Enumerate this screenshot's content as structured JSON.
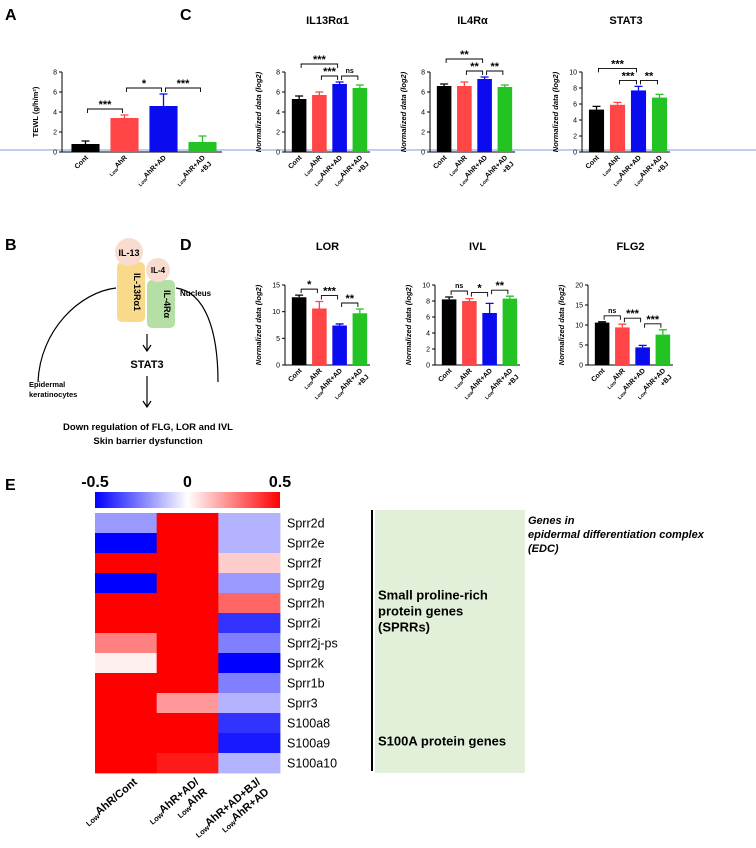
{
  "chart_data": [
    {
      "type": "bar",
      "panel": "A",
      "y_label": "TEWL (g/h/m²)",
      "categories": [
        [
          "Cont"
        ],
        [
          {
            "sub": "Low",
            "text": "AhR"
          }
        ],
        [
          {
            "sub": "Low",
            "text": "AhR+AD"
          }
        ],
        [
          {
            "sub": "Low",
            "text": "AhR+AD"
          },
          "+BJ"
        ]
      ],
      "values": [
        0.8,
        3.4,
        4.6,
        1.0
      ],
      "errors": [
        0.3,
        0.3,
        1.2,
        0.6
      ],
      "colors": [
        "#000000",
        "#ff4545",
        "#0b0bf0",
        "#22c322"
      ],
      "ylim": [
        0,
        8
      ],
      "yticks": [
        0,
        2,
        4,
        6,
        8
      ],
      "significance": [
        {
          "pair": [
            0,
            1
          ],
          "label": "***"
        },
        {
          "pair": [
            1,
            2
          ],
          "label": "*"
        },
        {
          "pair": [
            2,
            3
          ],
          "label": "***"
        }
      ]
    },
    {
      "type": "bar",
      "panel": "C",
      "title": "IL13Rα1",
      "y_label": "Normalized data (log2)",
      "categories": [
        [
          "Cont"
        ],
        [
          {
            "sub": "Low",
            "text": "AhR"
          }
        ],
        [
          {
            "sub": "Low",
            "text": "AhR+AD"
          }
        ],
        [
          {
            "sub": "Low",
            "text": "AhR+AD"
          },
          "+BJ"
        ]
      ],
      "values": [
        5.3,
        5.7,
        6.8,
        6.4
      ],
      "errors": [
        0.3,
        0.3,
        0.2,
        0.3
      ],
      "colors": [
        "#000000",
        "#ff4545",
        "#0b0bf0",
        "#22c322"
      ],
      "ylim": [
        0,
        8
      ],
      "yticks": [
        0,
        2,
        4,
        6,
        8
      ],
      "significance": [
        {
          "pair": [
            0,
            2
          ],
          "label": "***"
        },
        {
          "pair": [
            1,
            2
          ],
          "label": "***"
        },
        {
          "pair": [
            2,
            3
          ],
          "label": "ns"
        }
      ]
    },
    {
      "type": "bar",
      "title": "IL4Rα",
      "y_label": "Normalized data (log2)",
      "categories": [
        [
          "Cont"
        ],
        [
          {
            "sub": "Low",
            "text": "AhR"
          }
        ],
        [
          {
            "sub": "Low",
            "text": "AhR+AD"
          }
        ],
        [
          {
            "sub": "Low",
            "text": "AhR+AD"
          },
          "+BJ"
        ]
      ],
      "values": [
        6.6,
        6.6,
        7.3,
        6.5
      ],
      "errors": [
        0.2,
        0.4,
        0.2,
        0.2
      ],
      "colors": [
        "#000000",
        "#ff4545",
        "#0b0bf0",
        "#22c322"
      ],
      "ylim": [
        0,
        8
      ],
      "yticks": [
        0,
        2,
        4,
        6,
        8
      ],
      "significance": [
        {
          "pair": [
            0,
            2
          ],
          "label": "**"
        },
        {
          "pair": [
            1,
            2
          ],
          "label": "**"
        },
        {
          "pair": [
            2,
            3
          ],
          "label": "**"
        }
      ]
    },
    {
      "type": "bar",
      "title": "STAT3",
      "y_label": "Normalized data (log2)",
      "categories": [
        [
          "Cont"
        ],
        [
          {
            "sub": "Low",
            "text": "AhR"
          }
        ],
        [
          {
            "sub": "Low",
            "text": "AhR+AD"
          }
        ],
        [
          {
            "sub": "Low",
            "text": "AhR+AD"
          },
          "+BJ"
        ]
      ],
      "values": [
        5.3,
        5.9,
        7.7,
        6.8
      ],
      "errors": [
        0.4,
        0.3,
        0.5,
        0.4
      ],
      "colors": [
        "#000000",
        "#ff4545",
        "#0b0bf0",
        "#22c322"
      ],
      "ylim": [
        0,
        10
      ],
      "yticks": [
        0,
        2,
        4,
        6,
        8,
        10
      ],
      "significance": [
        {
          "pair": [
            0,
            2
          ],
          "label": "***"
        },
        {
          "pair": [
            1,
            2
          ],
          "label": "***"
        },
        {
          "pair": [
            2,
            3
          ],
          "label": "**"
        }
      ]
    },
    {
      "type": "bar",
      "panel": "D",
      "title": "LOR",
      "y_label": "Normalized data (log2)",
      "categories": [
        [
          "Cont"
        ],
        [
          {
            "sub": "Low",
            "text": "AhR"
          }
        ],
        [
          {
            "sub": "Low",
            "text": "AhR+AD"
          }
        ],
        [
          {
            "sub": "Low",
            "text": "AhR+AD"
          },
          "+BJ"
        ]
      ],
      "values": [
        12.7,
        10.6,
        7.4,
        9.7
      ],
      "errors": [
        0.4,
        1.3,
        0.3,
        0.8
      ],
      "colors": [
        "#000000",
        "#ff4545",
        "#0b0bf0",
        "#22c322"
      ],
      "ylim": [
        0,
        15
      ],
      "yticks": [
        0,
        5,
        10,
        15
      ],
      "significance": [
        {
          "pair": [
            0,
            1
          ],
          "label": "*"
        },
        {
          "pair": [
            1,
            2
          ],
          "label": "***"
        },
        {
          "pair": [
            2,
            3
          ],
          "label": "**"
        }
      ]
    },
    {
      "type": "bar",
      "title": "IVL",
      "y_label": "Normalized data (log2)",
      "categories": [
        [
          "Cont"
        ],
        [
          {
            "sub": "Low",
            "text": "AhR"
          }
        ],
        [
          {
            "sub": "Low",
            "text": "AhR+AD"
          }
        ],
        [
          {
            "sub": "Low",
            "text": "AhR+AD"
          },
          "+BJ"
        ]
      ],
      "values": [
        8.2,
        8.0,
        6.5,
        8.3
      ],
      "errors": [
        0.3,
        0.3,
        1.2,
        0.3
      ],
      "colors": [
        "#000000",
        "#ff4545",
        "#0b0bf0",
        "#22c322"
      ],
      "ylim": [
        0,
        10
      ],
      "yticks": [
        0,
        2,
        4,
        6,
        8,
        10
      ],
      "significance": [
        {
          "pair": [
            0,
            1
          ],
          "label": "ns"
        },
        {
          "pair": [
            1,
            2
          ],
          "label": "*"
        },
        {
          "pair": [
            2,
            3
          ],
          "label": "**"
        }
      ]
    },
    {
      "type": "bar",
      "title": "FLG2",
      "y_label": "Normalized data (log2)",
      "categories": [
        [
          "Cont"
        ],
        [
          {
            "sub": "Low",
            "text": "AhR"
          }
        ],
        [
          {
            "sub": "Low",
            "text": "AhR+AD"
          }
        ],
        [
          {
            "sub": "Low",
            "text": "AhR+AD"
          },
          "+BJ"
        ]
      ],
      "values": [
        10.6,
        9.4,
        4.4,
        7.6
      ],
      "errors": [
        0.2,
        0.8,
        0.5,
        1.2
      ],
      "colors": [
        "#000000",
        "#ff4545",
        "#0b0bf0",
        "#22c322"
      ],
      "ylim": [
        0,
        20
      ],
      "yticks": [
        0,
        5,
        10,
        15,
        20
      ],
      "significance": [
        {
          "pair": [
            0,
            1
          ],
          "label": "ns"
        },
        {
          "pair": [
            1,
            2
          ],
          "label": "***"
        },
        {
          "pair": [
            2,
            3
          ],
          "label": "***"
        }
      ]
    },
    {
      "type": "heatmap",
      "panel": "E",
      "rows": [
        "Sprr2d",
        "Sprr2e",
        "Sprr2f",
        "Sprr2g",
        "Sprr2h",
        "Sprr2i",
        "Sprr2j-ps",
        "Sprr2k",
        "Sprr1b",
        "Sprr3",
        "S100a8",
        "S100a9",
        "S100a10"
      ],
      "columns": [
        [
          {
            "sub": "Low",
            "text": "AhR/Cont"
          }
        ],
        [
          {
            "sub": "Low",
            "text": "AhR+AD/"
          },
          {
            "sub": "Low",
            "text": "AhR"
          }
        ],
        [
          {
            "sub": "Low",
            "text": "AhR+AD+BJ/"
          },
          {
            "sub": "Low",
            "text": "AhR+AD"
          }
        ]
      ],
      "values": [
        [
          -0.2,
          0.5,
          -0.15
        ],
        [
          -0.5,
          0.5,
          -0.15
        ],
        [
          0.5,
          0.5,
          0.1
        ],
        [
          -0.5,
          0.5,
          -0.2
        ],
        [
          0.5,
          0.5,
          0.3
        ],
        [
          0.5,
          0.5,
          -0.4
        ],
        [
          0.25,
          0.5,
          -0.25
        ],
        [
          0.03,
          0.5,
          -0.5
        ],
        [
          0.5,
          0.5,
          -0.25
        ],
        [
          0.5,
          0.2,
          -0.15
        ],
        [
          0.5,
          0.5,
          -0.4
        ],
        [
          0.5,
          0.5,
          -0.45
        ],
        [
          0.5,
          0.45,
          -0.15
        ]
      ],
      "clim": [
        -0.5,
        0.5
      ],
      "cticks": [
        -0.5,
        0,
        0.5
      ],
      "cmap": [
        "#0000ff",
        "#ffffff",
        "#ff0000"
      ],
      "groups": [
        {
          "lines": [
            "Small proline-rich",
            "protein genes",
            "(SPRRs)"
          ],
          "rows": [
            0,
            9
          ]
        },
        {
          "lines": [
            "S100A protein genes"
          ],
          "rows": [
            10,
            12
          ]
        }
      ],
      "group_color": "#e2efd9",
      "note": [
        "Genes in",
        "epidermal differentiation complex",
        "(EDC)"
      ]
    }
  ],
  "diagram": {
    "panel": "B",
    "ligands": [
      "IL-13",
      "IL-4"
    ],
    "receptors": [
      "IL-13Rα1",
      "IL-4Rα"
    ],
    "compartment": "Nucleus",
    "transducer": "STAT3",
    "cell": [
      "Epidermal",
      "keratinocytes"
    ],
    "outcome": [
      "Down regulation of FLG, LOR and IVL",
      "Skin barrier dysfunction"
    ]
  }
}
